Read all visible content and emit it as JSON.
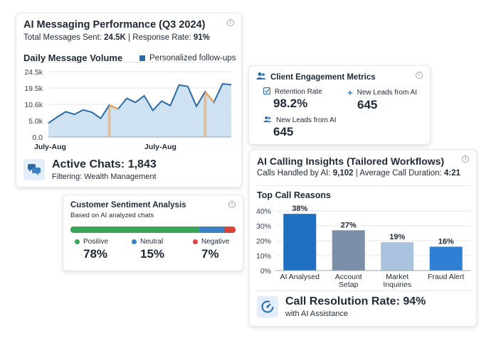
{
  "messaging": {
    "title": "AI Messaging Performance (Q3 2024)",
    "subtitle_prefix": "Total Messages Sent: ",
    "total_messages": "24.5K",
    "subtitle_mid": " | Response Rate: ",
    "response_rate": "91%",
    "chart_title": "Daily Message Volume",
    "legend": "Personalized follow-ups",
    "active_chats": "Active Chats: 1,843",
    "filtering": "Filtering: Wealth Management"
  },
  "engagement": {
    "title": "Client Engagement Metrics",
    "retention_label": "Retention Rate",
    "retention_value": "98.2%",
    "new_leads_label_1": "New Leads from AI",
    "new_leads_value_1": "645",
    "new_leads_label_2": "New Leads from AI",
    "new_leads_value_2": "645"
  },
  "sentiment": {
    "title": "Customer Sentiment Analysis",
    "subtitle": "Based on AI analyzed chats",
    "positive_label": "Positive",
    "positive_value": "78%",
    "neutral_label": "Neutral",
    "neutral_value": "15%",
    "negative_label": "Negative",
    "negative_value": "7%",
    "bar_fractions": [
      0.78,
      0.15,
      0.07
    ]
  },
  "calling": {
    "title": "AI Calling Insights (Tailored Workflows)",
    "subtitle_prefix": "Calls Handled by AI: ",
    "calls_handled": "9,102",
    "subtitle_mid": " | Average Call Duration: ",
    "avg_duration": "4:21",
    "chart_title": "Top Call Reasons",
    "resolution": "Call Resolution Rate: 94%",
    "resolution_sub": "with AI Assistance"
  },
  "colors": {
    "line_series": "#2a6aa6",
    "area_fill": "#c9dff1",
    "highlight": "#e8a35a",
    "positive": "#3aa556",
    "neutral": "#3b82c4",
    "negative": "#d9443a",
    "bar_1": "#1e6fc0",
    "bar_2": "#7b90a8",
    "bar_3": "#a9c2de",
    "bar_4": "#2f7fd4"
  },
  "chart_data": [
    {
      "type": "area",
      "title": "Daily Message Volume",
      "xlabel": "",
      "ylabel": "",
      "x_tick_labels": [
        "July-Aug",
        "July-Aug"
      ],
      "y_tick_labels": [
        "24.5k",
        "19.5k",
        "10.6k",
        "5.0k",
        "0.0"
      ],
      "ylim": [
        0,
        24.5
      ],
      "series": [
        {
          "name": "Personalized follow-ups",
          "values": [
            5.2,
            7.5,
            9.5,
            8.5,
            10.2,
            9.3,
            7.0,
            12.0,
            10.5,
            14.5,
            13.0,
            15.5,
            10.0,
            13.5,
            11.8,
            19.5,
            19.0,
            11.5,
            17.0,
            13.0,
            20.0,
            19.6
          ]
        }
      ],
      "highlighted_points": [
        7,
        18
      ],
      "grid": true,
      "legend": "top-right"
    },
    {
      "type": "bar",
      "title": "Top Call Reasons",
      "categories": [
        "AI Analysed",
        "Account Setap",
        "Market Inquiries",
        "Fraud Alert"
      ],
      "values": [
        38,
        27,
        19,
        16
      ],
      "value_labels": [
        "38%",
        "27%",
        "19%",
        "16%"
      ],
      "y_tick_labels": [
        "40%",
        "30%",
        "20%",
        "10%",
        "0%"
      ],
      "ylim": [
        0,
        40
      ],
      "grid": true
    }
  ]
}
